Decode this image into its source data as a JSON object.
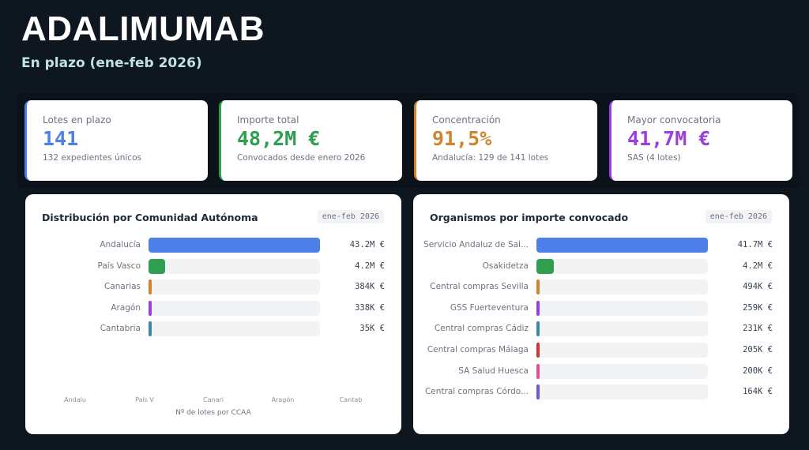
{
  "header": {
    "title": "ADALIMUMAB",
    "subtitle": "En plazo (ene-feb 2026)"
  },
  "kpis": [
    {
      "label": "Lotes en plazo",
      "value": "141",
      "sub": "132 expedientes únicos",
      "color": "#4f7fe8"
    },
    {
      "label": "Importe total",
      "value": "48,2M €",
      "sub": "Convocados desde enero 2026",
      "color": "#2f9e4f"
    },
    {
      "label": "Concentración",
      "value": "91,5%",
      "sub": "Andalucía: 129 de 141 lotes",
      "color": "#d08430"
    },
    {
      "label": "Mayor convocatoria",
      "value": "41,7M €",
      "sub": "SAS (4 lotes)",
      "color": "#9b3fdc"
    }
  ],
  "chart_data": [
    {
      "type": "bar",
      "orientation": "horizontal",
      "title": "Distribución por Comunidad Autónoma",
      "badge": "ene-feb 2026",
      "categories": [
        "Andalucía",
        "País Vasco",
        "Canarias",
        "Aragón",
        "Cantabria"
      ],
      "values": [
        43.2,
        4.2,
        0.384,
        0.338,
        0.035
      ],
      "unit": "M €",
      "value_labels": [
        "43.2M €",
        "4.2M €",
        "384K €",
        "338K €",
        "35K €"
      ],
      "colors": [
        "#4f7fe8",
        "#2f9e4f",
        "#d08430",
        "#9b3fdc",
        "#3a8aa8"
      ],
      "xaxis": {
        "tick_labels": [
          "Andalu",
          "País V",
          "Canari",
          "Aragón",
          "Cantab"
        ],
        "title": "Nº de lotes por CCAA"
      }
    },
    {
      "type": "bar",
      "orientation": "horizontal",
      "title": "Organismos por importe convocado",
      "badge": "ene-feb 2026",
      "categories": [
        "Servicio Andaluz de Sal...",
        "Osakidetza",
        "Central compras Sevilla",
        "GSS Fuerteventura",
        "Central compras Cádiz",
        "Central compras Málaga",
        "SA Salud Huesca",
        "Central compras Córdo..."
      ],
      "values": [
        41.7,
        4.2,
        0.494,
        0.259,
        0.231,
        0.205,
        0.2,
        0.164
      ],
      "unit": "M €",
      "value_labels": [
        "41.7M €",
        "4.2M €",
        "494K €",
        "259K €",
        "231K €",
        "205K €",
        "200K €",
        "164K €"
      ],
      "colors": [
        "#4f7fe8",
        "#2f9e4f",
        "#d08430",
        "#9b3fdc",
        "#3a8aa8",
        "#cf3535",
        "#e0509a",
        "#6a5ae0"
      ]
    }
  ]
}
